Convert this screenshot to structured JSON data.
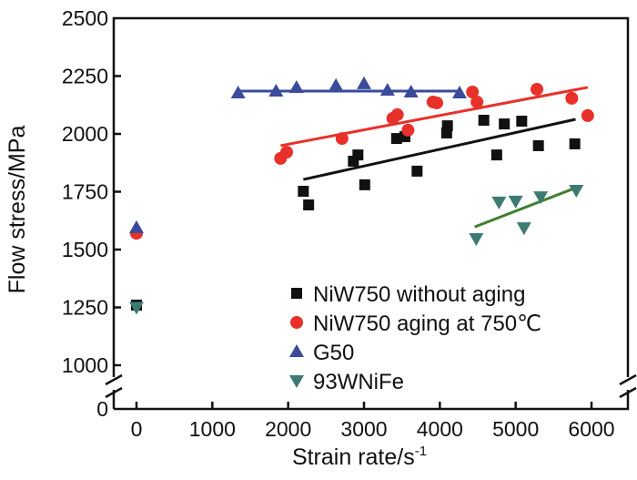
{
  "chart_data": {
    "type": "scatter",
    "title": "",
    "xlabel": "Strain rate/s",
    "xlabel_sup": "-1",
    "ylabel": "Flow stress/MPa",
    "xlim": [
      -350,
      6500
    ],
    "ylim": [
      0,
      2500
    ],
    "y_break": [
      0,
      1000
    ],
    "xticks": [
      0,
      1000,
      2000,
      3000,
      4000,
      5000,
      6000
    ],
    "yticks": [
      0,
      1000,
      1250,
      1500,
      1750,
      2000,
      2250,
      2500
    ],
    "grid": false,
    "legend_position": "bottom-right",
    "series": [
      {
        "name": "NiW750 without aging",
        "marker": "square",
        "color": "#111111",
        "points": [
          [
            0,
            1260
          ],
          [
            2200,
            1752
          ],
          [
            2270,
            1693
          ],
          [
            2860,
            1882
          ],
          [
            2920,
            1909
          ],
          [
            3010,
            1780
          ],
          [
            3430,
            1980
          ],
          [
            3540,
            1988
          ],
          [
            3700,
            1839
          ],
          [
            4090,
            2004
          ],
          [
            4100,
            2035
          ],
          [
            4580,
            2059
          ],
          [
            4750,
            1909
          ],
          [
            4850,
            2043
          ],
          [
            5080,
            2055
          ],
          [
            5300,
            1949
          ],
          [
            5780,
            1957
          ]
        ],
        "fit": [
          [
            2200,
            1803
          ],
          [
            5790,
            2063
          ]
        ]
      },
      {
        "name": "NiW750 aging at 750℃",
        "marker": "circle",
        "color": "#e8312a",
        "points": [
          [
            0,
            1570
          ],
          [
            1900,
            1894
          ],
          [
            1980,
            1921
          ],
          [
            2710,
            1980
          ],
          [
            3380,
            2067
          ],
          [
            3440,
            2083
          ],
          [
            3580,
            2016
          ],
          [
            3910,
            2138
          ],
          [
            3960,
            2134
          ],
          [
            4430,
            2181
          ],
          [
            4490,
            2138
          ],
          [
            5280,
            2193
          ],
          [
            5740,
            2154
          ],
          [
            5950,
            2079
          ]
        ],
        "fit": [
          [
            1900,
            1949
          ],
          [
            5950,
            2201
          ]
        ]
      },
      {
        "name": "G50",
        "marker": "triangle-up",
        "color": "#3a4b9a",
        "points": [
          [
            0,
            1595
          ],
          [
            1340,
            2177
          ],
          [
            1840,
            2185
          ],
          [
            2110,
            2201
          ],
          [
            2630,
            2209
          ],
          [
            3000,
            2217
          ],
          [
            3310,
            2189
          ],
          [
            3620,
            2181
          ],
          [
            4260,
            2177
          ]
        ],
        "fit": [
          [
            1340,
            2185
          ],
          [
            4260,
            2185
          ]
        ]
      },
      {
        "name": "93WNiFe",
        "marker": "triangle-down",
        "color": "#3d7a72",
        "points": [
          [
            0,
            1250
          ],
          [
            4480,
            1547
          ],
          [
            4780,
            1705
          ],
          [
            5000,
            1709
          ],
          [
            5110,
            1594
          ],
          [
            5330,
            1728
          ],
          [
            5800,
            1756
          ]
        ],
        "fit": [
          [
            4460,
            1598
          ],
          [
            5800,
            1768
          ]
        ],
        "fit_color": "#3f7f2f"
      }
    ]
  }
}
